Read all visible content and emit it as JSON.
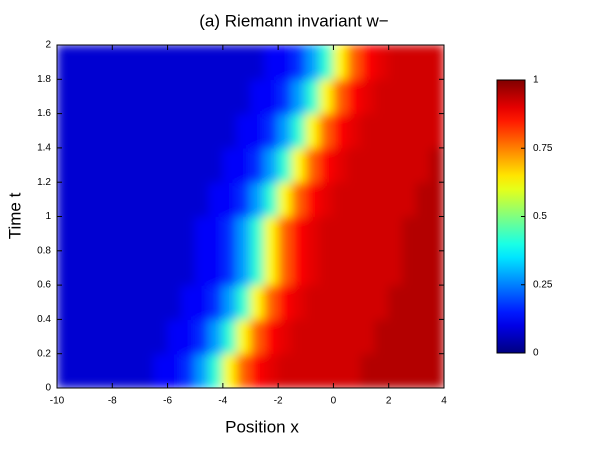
{
  "chart_data": {
    "type": "heatmap",
    "title": "(a) Riemann invariant w−",
    "x_label": "Position x",
    "y_label": "Time t",
    "colormap": "jet",
    "x": [
      -9.75,
      -9.25,
      -8.75,
      -8.25,
      -7.75,
      -7.25,
      -6.75,
      -6.25,
      -5.75,
      -5.25,
      -4.75,
      -4.25,
      -3.75,
      -3.25,
      -2.75,
      -2.25,
      -1.75,
      -1.25,
      -0.75,
      -0.25,
      0.25,
      0.75,
      1.25,
      1.75,
      2.25,
      2.75,
      3.25,
      3.75
    ],
    "y": [
      0.1,
      0.3,
      0.5,
      0.7,
      0.9,
      1.1,
      1.3,
      1.5,
      1.7,
      1.9
    ],
    "z": [
      [
        0.08,
        0.08,
        0.08,
        0.08,
        0.08,
        0.08,
        0.08,
        0.12,
        0.12,
        0.17,
        0.28,
        0.42,
        0.63,
        0.78,
        0.87,
        0.9,
        0.92,
        0.92,
        0.92,
        0.92,
        0.92,
        0.92,
        0.95,
        0.95,
        0.95,
        0.95,
        0.95,
        0.95
      ],
      [
        0.08,
        0.08,
        0.08,
        0.08,
        0.08,
        0.08,
        0.08,
        0.08,
        0.12,
        0.12,
        0.17,
        0.28,
        0.42,
        0.63,
        0.78,
        0.87,
        0.9,
        0.92,
        0.92,
        0.92,
        0.92,
        0.92,
        0.92,
        0.95,
        0.95,
        0.95,
        0.95,
        0.95
      ],
      [
        0.08,
        0.08,
        0.08,
        0.08,
        0.08,
        0.08,
        0.08,
        0.08,
        0.08,
        0.12,
        0.12,
        0.17,
        0.28,
        0.42,
        0.63,
        0.78,
        0.87,
        0.9,
        0.92,
        0.92,
        0.92,
        0.92,
        0.92,
        0.92,
        0.95,
        0.95,
        0.95,
        0.95
      ],
      [
        0.08,
        0.08,
        0.08,
        0.08,
        0.08,
        0.08,
        0.08,
        0.08,
        0.08,
        0.08,
        0.12,
        0.12,
        0.17,
        0.28,
        0.42,
        0.63,
        0.78,
        0.87,
        0.9,
        0.92,
        0.92,
        0.92,
        0.92,
        0.92,
        0.92,
        0.95,
        0.95,
        0.95
      ],
      [
        0.08,
        0.08,
        0.08,
        0.08,
        0.08,
        0.08,
        0.08,
        0.08,
        0.08,
        0.08,
        0.12,
        0.12,
        0.17,
        0.28,
        0.42,
        0.63,
        0.78,
        0.87,
        0.9,
        0.92,
        0.92,
        0.92,
        0.92,
        0.92,
        0.92,
        0.95,
        0.95,
        0.95
      ],
      [
        0.08,
        0.08,
        0.08,
        0.08,
        0.08,
        0.08,
        0.08,
        0.08,
        0.08,
        0.08,
        0.08,
        0.12,
        0.12,
        0.17,
        0.28,
        0.42,
        0.63,
        0.78,
        0.87,
        0.9,
        0.92,
        0.92,
        0.92,
        0.92,
        0.92,
        0.92,
        0.95,
        0.95
      ],
      [
        0.08,
        0.08,
        0.08,
        0.08,
        0.08,
        0.08,
        0.08,
        0.08,
        0.08,
        0.08,
        0.08,
        0.08,
        0.12,
        0.12,
        0.17,
        0.28,
        0.42,
        0.63,
        0.78,
        0.87,
        0.9,
        0.92,
        0.92,
        0.92,
        0.92,
        0.92,
        0.92,
        0.95
      ],
      [
        0.08,
        0.08,
        0.08,
        0.08,
        0.08,
        0.08,
        0.08,
        0.08,
        0.08,
        0.08,
        0.08,
        0.08,
        0.08,
        0.12,
        0.12,
        0.17,
        0.28,
        0.42,
        0.63,
        0.78,
        0.87,
        0.9,
        0.92,
        0.92,
        0.92,
        0.92,
        0.92,
        0.92
      ],
      [
        0.08,
        0.08,
        0.08,
        0.08,
        0.08,
        0.08,
        0.08,
        0.08,
        0.08,
        0.08,
        0.08,
        0.08,
        0.08,
        0.08,
        0.12,
        0.12,
        0.17,
        0.28,
        0.42,
        0.63,
        0.78,
        0.87,
        0.9,
        0.92,
        0.92,
        0.92,
        0.92,
        0.92
      ],
      [
        0.08,
        0.08,
        0.08,
        0.08,
        0.08,
        0.08,
        0.08,
        0.08,
        0.08,
        0.08,
        0.08,
        0.08,
        0.08,
        0.08,
        0.08,
        0.12,
        0.12,
        0.17,
        0.28,
        0.42,
        0.63,
        0.78,
        0.87,
        0.9,
        0.92,
        0.92,
        0.92,
        0.92
      ]
    ],
    "xlim": [
      -10,
      4
    ],
    "xticks": [
      -10,
      -8,
      -6,
      -4,
      -2,
      0,
      2,
      4
    ],
    "ylim": [
      0,
      2
    ],
    "yticks": [
      0,
      0.2,
      0.4,
      0.6,
      0.8,
      1,
      1.2,
      1.4,
      1.6,
      1.8,
      2
    ],
    "colorbar": {
      "lim": [
        0,
        1
      ],
      "ticks": [
        0,
        0.25,
        0.5,
        0.75,
        1
      ]
    }
  }
}
